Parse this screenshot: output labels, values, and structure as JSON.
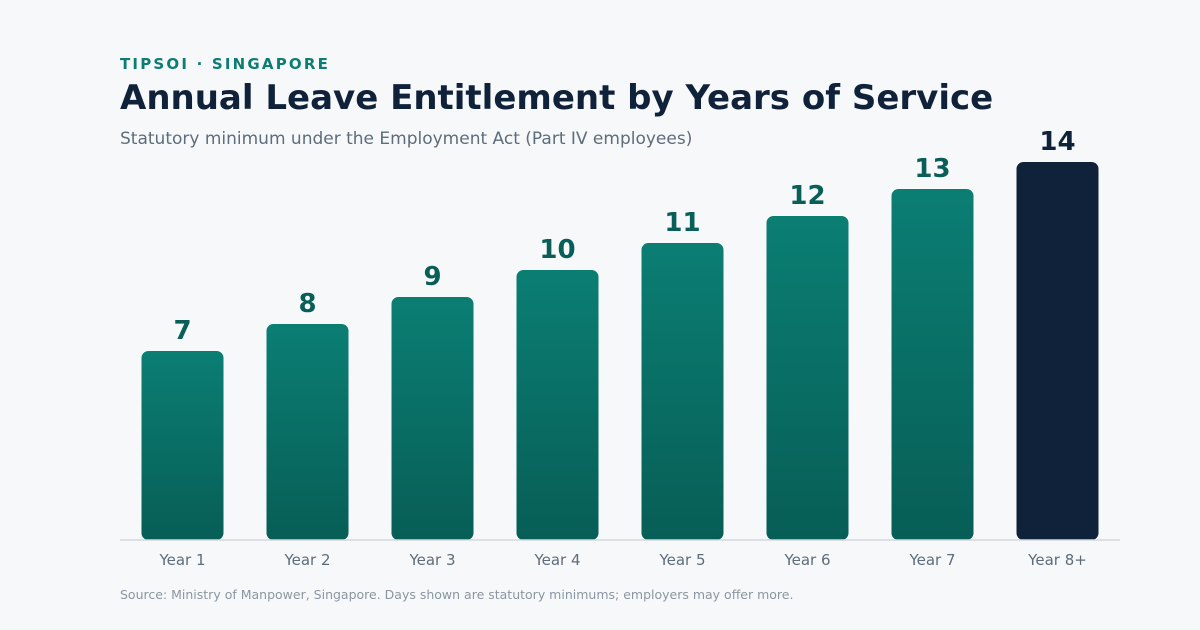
{
  "header": {
    "eyebrow": "TIPSOI · SINGAPORE",
    "title": "Annual Leave Entitlement by Years of Service",
    "subtitle": "Statutory minimum under the Employment Act (Part IV employees)"
  },
  "footer": {
    "source": "Source: Ministry of Manpower, Singapore. Days shown are statutory minimums; employers may offer more."
  },
  "colors": {
    "bar_top": "#0b7e73",
    "bar_bottom": "#075e56",
    "highlight_bar": "#10223a",
    "value_label": "#0a5e58",
    "highlight_label": "#10223a",
    "axis": "#d3d8de"
  },
  "chart_data": {
    "type": "bar",
    "title": "Annual Leave Entitlement by Years of Service",
    "subtitle": "Statutory minimum under the Employment Act (Part IV employees)",
    "categories": [
      "Year 1",
      "Year 2",
      "Year 3",
      "Year 4",
      "Year 5",
      "Year 6",
      "Year 7",
      "Year 8+"
    ],
    "values": [
      7,
      8,
      9,
      10,
      11,
      12,
      13,
      14
    ],
    "highlight_index": 7,
    "ylim": [
      0,
      14
    ],
    "grid": false,
    "legend": "none",
    "xlabel": "",
    "ylabel": ""
  }
}
